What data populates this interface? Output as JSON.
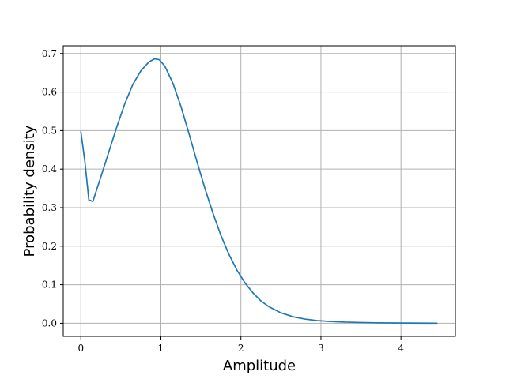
{
  "chart_data": {
    "type": "line",
    "xlabel": "Amplitude",
    "ylabel": "Probability density",
    "xlim": [
      -0.22,
      4.68
    ],
    "ylim": [
      -0.034,
      0.72
    ],
    "xticks": [
      0,
      1,
      2,
      3,
      4
    ],
    "yticks": [
      0.0,
      0.1,
      0.2,
      0.3,
      0.4,
      0.5,
      0.6,
      0.7
    ],
    "xtick_labels": [
      "0",
      "1",
      "2",
      "3",
      "4"
    ],
    "ytick_labels": [
      "0.0",
      "0.1",
      "0.2",
      "0.3",
      "0.4",
      "0.5",
      "0.6",
      "0.7"
    ],
    "grid": true,
    "line_color": "#1f77b4",
    "grid_color": "#b0b0b0",
    "series": [
      {
        "x": [
          0.0,
          0.05,
          0.1,
          0.15,
          0.25,
          0.35,
          0.45,
          0.55,
          0.65,
          0.75,
          0.85,
          0.92,
          0.98,
          1.05,
          1.15,
          1.25,
          1.35,
          1.45,
          1.55,
          1.65,
          1.75,
          1.85,
          1.95,
          2.05,
          2.15,
          2.25,
          2.35,
          2.5,
          2.65,
          2.8,
          2.95,
          3.1,
          3.3,
          3.5,
          3.7,
          3.9,
          4.1,
          4.3,
          4.45
        ],
        "y": [
          0.497,
          0.42,
          0.32,
          0.316,
          0.38,
          0.445,
          0.51,
          0.57,
          0.62,
          0.655,
          0.678,
          0.686,
          0.684,
          0.667,
          0.623,
          0.563,
          0.493,
          0.42,
          0.35,
          0.286,
          0.228,
          0.179,
          0.138,
          0.105,
          0.079,
          0.058,
          0.043,
          0.027,
          0.017,
          0.011,
          0.007,
          0.005,
          0.003,
          0.002,
          0.0012,
          0.0008,
          0.0005,
          0.0003,
          0.0002
        ]
      }
    ]
  }
}
